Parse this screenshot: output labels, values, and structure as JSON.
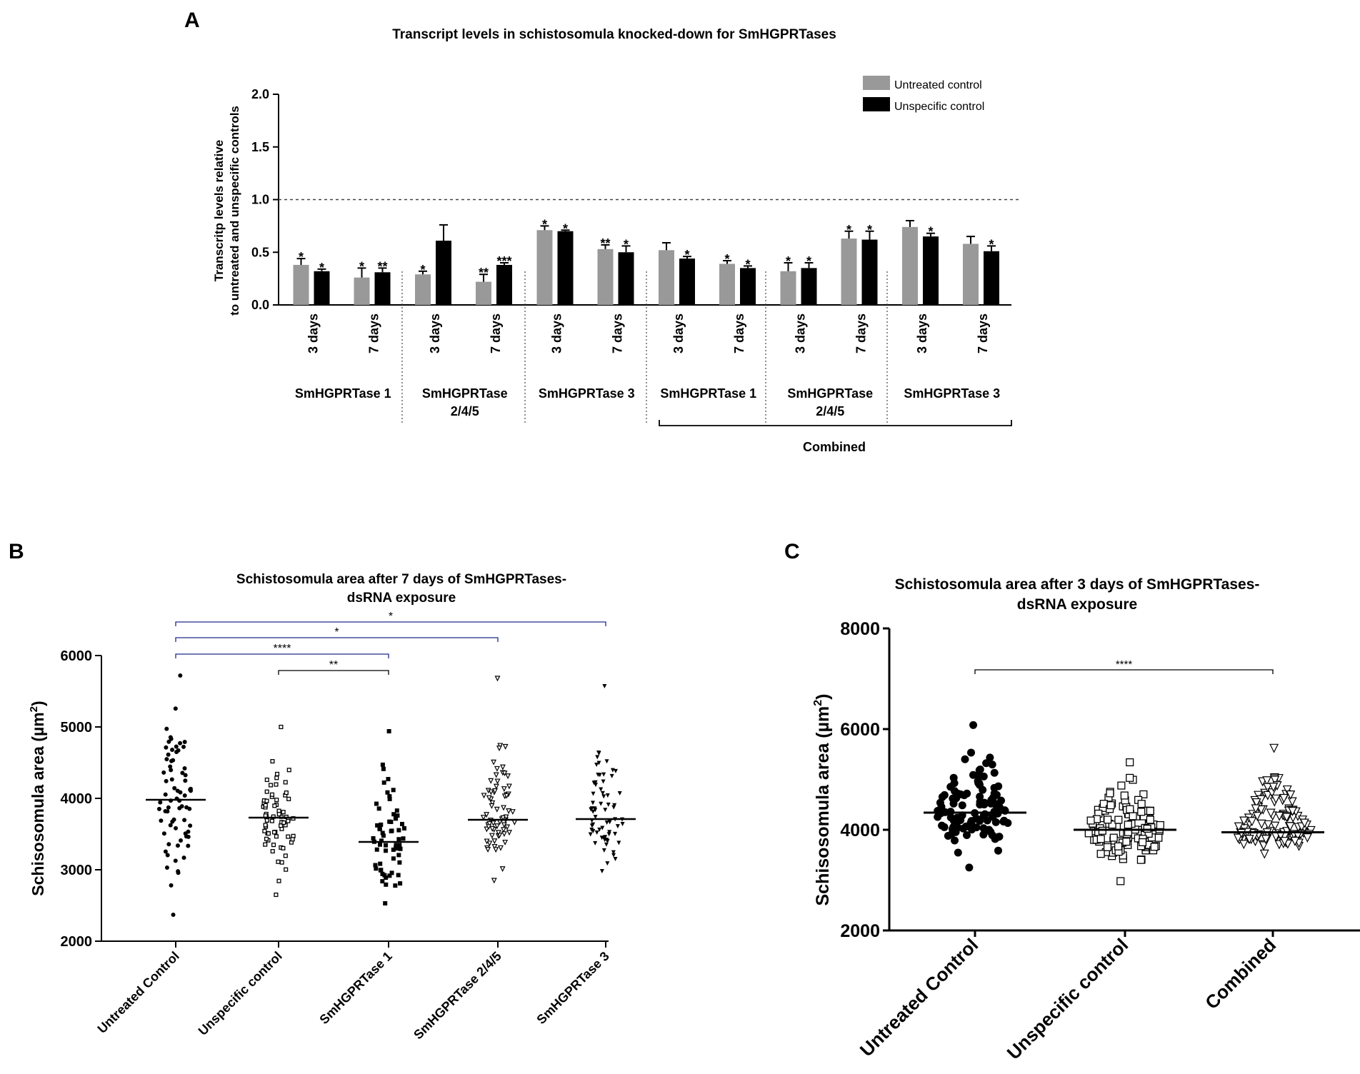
{
  "panel_letters": {
    "a": "A",
    "b": "B",
    "c": "C"
  },
  "chart_data": [
    {
      "id": "A",
      "type": "bar",
      "title": "Transcript levels in schistosomula knocked-down for SmHGPRTases",
      "ylabel_line1": "Transcritp levels relative",
      "ylabel_line2": "to untreated and unspecific controls",
      "ylim": [
        0,
        2.0
      ],
      "yticks": [
        0.0,
        0.5,
        1.0,
        1.5,
        2.0
      ],
      "ytick_labels": [
        "0.0",
        "0.5",
        "1.0",
        "1.5",
        "2.0"
      ],
      "reference_line": 1.0,
      "legend": [
        {
          "name": "Untreated control",
          "color": "#999999"
        },
        {
          "name": "Unspecific control",
          "color": "#000000"
        }
      ],
      "legend_position": "top-right",
      "categories": [
        "3 days",
        "7 days",
        "3 days",
        "7 days",
        "3 days",
        "7 days",
        "3 days",
        "7 days",
        "3 days",
        "7 days",
        "3 days",
        "7 days"
      ],
      "series": [
        {
          "name": "Untreated control",
          "color": "#999999",
          "values": [
            0.38,
            0.26,
            0.29,
            0.22,
            0.71,
            0.53,
            0.52,
            0.39,
            0.32,
            0.63,
            0.74,
            0.58
          ],
          "errors": [
            0.06,
            0.09,
            0.03,
            0.07,
            0.04,
            0.04,
            0.07,
            0.03,
            0.08,
            0.07,
            0.06,
            0.07
          ],
          "significance": [
            "*",
            "*",
            "*",
            "**",
            "*",
            "**",
            "",
            "*",
            "*",
            "*",
            "",
            ""
          ]
        },
        {
          "name": "Unspecific control",
          "color": "#000000",
          "values": [
            0.32,
            0.31,
            0.61,
            0.38,
            0.7,
            0.5,
            0.44,
            0.35,
            0.35,
            0.62,
            0.65,
            0.51
          ],
          "errors": [
            0.02,
            0.04,
            0.15,
            0.02,
            0.01,
            0.06,
            0.02,
            0.02,
            0.05,
            0.08,
            0.03,
            0.05
          ],
          "significance": [
            "*",
            "**",
            "",
            "***",
            "*",
            "*",
            "*",
            "*",
            "*",
            "*",
            "*",
            "*"
          ]
        }
      ],
      "groups": [
        {
          "label_line1": "SmHGPRTase 1",
          "label_line2": ""
        },
        {
          "label_line1": "SmHGPRTase",
          "label_line2": "2/4/5"
        },
        {
          "label_line1": "SmHGPRTase 3",
          "label_line2": ""
        },
        {
          "label_line1": "SmHGPRTase 1",
          "label_line2": ""
        },
        {
          "label_line1": "SmHGPRTase",
          "label_line2": "2/4/5"
        },
        {
          "label_line1": "SmHGPRTase 3",
          "label_line2": ""
        }
      ],
      "bracket_label": "Combined"
    },
    {
      "id": "B",
      "type": "scatter",
      "title_line1": "Schistosomula area after 7 days of SmHGPRTases-",
      "title_line2": "dsRNA exposure",
      "ylabel": "Schisosomula area (µm",
      "ylabel_sup": "2",
      "ylabel_close": ")",
      "ylim": [
        2000,
        6000
      ],
      "yticks": [
        2000,
        3000,
        4000,
        5000,
        6000
      ],
      "ytick_labels": [
        "2000",
        "3000",
        "4000",
        "5000",
        "6000"
      ],
      "categories": [
        "Untreated Control",
        "Unspecific control",
        "SmHGPRTase 1",
        "SmHGPRTase 2/4/5",
        "SmHGPRTase 3"
      ],
      "markers": [
        "filled-circle",
        "open-square",
        "filled-square",
        "open-triangle-down",
        "filled-triangle-down"
      ],
      "medians": [
        3980,
        3730,
        3390,
        3700,
        3710
      ],
      "min": [
        2370,
        2650,
        2530,
        2850,
        2980
      ],
      "max": [
        5720,
        5000,
        4940,
        5680,
        5570
      ],
      "n": [
        72,
        68,
        65,
        70,
        70
      ],
      "comparisons": [
        {
          "from": "Untreated Control",
          "to": "SmHGPRTase 3",
          "label": "*"
        },
        {
          "from": "Untreated Control",
          "to": "SmHGPRTase 2/4/5",
          "label": "*"
        },
        {
          "from": "Untreated Control",
          "to": "SmHGPRTase 1",
          "label": "****"
        },
        {
          "from": "Unspecific control",
          "to": "SmHGPRTase 1",
          "label": "**"
        }
      ]
    },
    {
      "id": "C",
      "type": "scatter",
      "title_line1": "Schistosomula area after 3 days of SmHGPRTases-",
      "title_line2": "dsRNA exposure",
      "ylabel": "Schisosomula area (µm",
      "ylabel_sup": "2",
      "ylabel_close": ")",
      "ylim": [
        2000,
        8000
      ],
      "yticks": [
        2000,
        4000,
        6000,
        8000
      ],
      "ytick_labels": [
        "2000",
        "4000",
        "6000",
        "8000"
      ],
      "categories": [
        "Untreated Control",
        "Unspecific control",
        "Combined"
      ],
      "markers": [
        "filled-circle",
        "open-square",
        "open-triangle-down"
      ],
      "medians": [
        4340,
        4000,
        3950
      ],
      "min": [
        3250,
        2980,
        3520
      ],
      "max": [
        6080,
        5340,
        5620
      ],
      "n": [
        110,
        115,
        130
      ],
      "comparisons": [
        {
          "from": "Untreated Control",
          "to": "Combined",
          "label": "****"
        }
      ]
    }
  ]
}
